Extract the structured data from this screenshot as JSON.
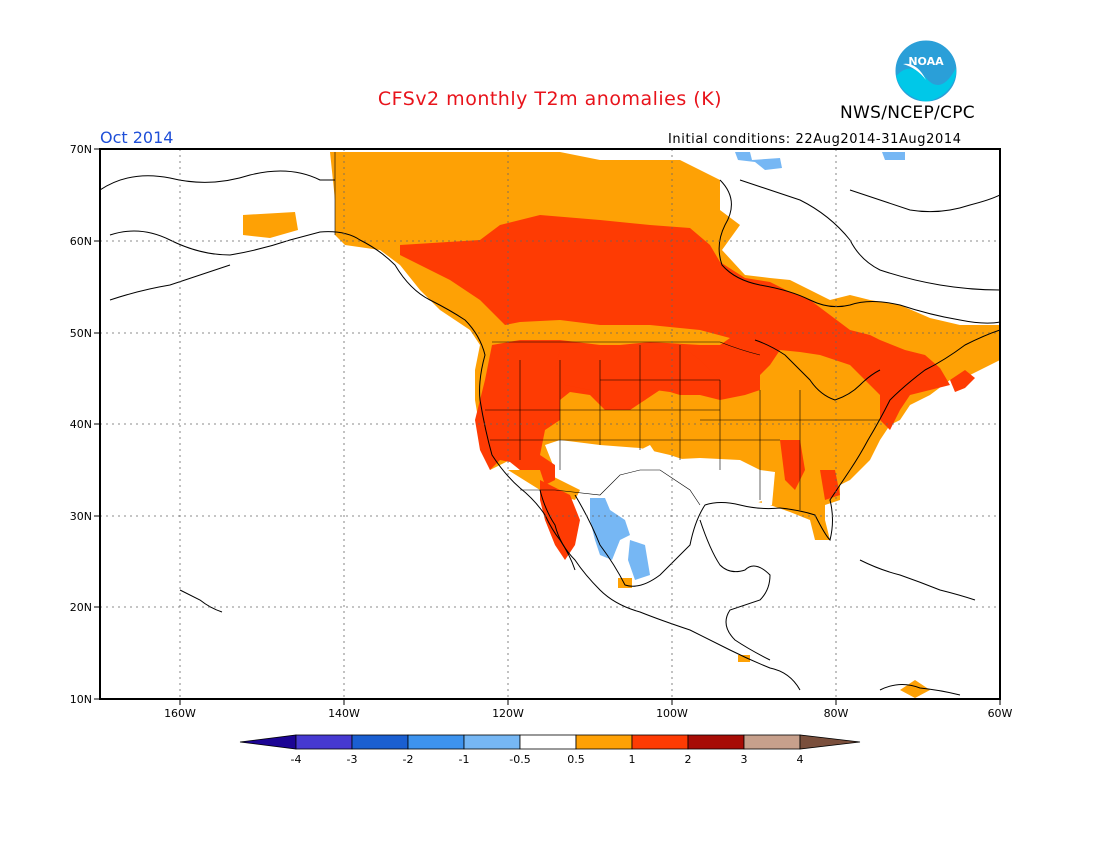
{
  "header": {
    "title": "CFSv2 monthly T2m anomalies (K)",
    "agency": "NWS/NCEP/CPC",
    "logo_text": "NOAA",
    "valid_month": "Oct 2014",
    "initial_conditions": "Initial conditions: 22Aug2014-31Aug2014"
  },
  "map": {
    "lat_labels": [
      "70N",
      "60N",
      "50N",
      "40N",
      "30N",
      "20N",
      "10N"
    ],
    "lon_labels": [
      "160W",
      "140W",
      "120W",
      "100W",
      "80W",
      "60W"
    ],
    "lat_range": [
      10,
      70
    ],
    "lon_range": [
      -171,
      -60
    ],
    "grid": true,
    "anomaly_regions": [
      {
        "region": "Canada interior",
        "category": "1 to 2",
        "color": "#fe3b03"
      },
      {
        "region": "Northern US Plains / Great Lakes",
        "category": "1 to 2",
        "color": "#fe3b03"
      },
      {
        "region": "Pacific Northwest / California",
        "category": "1 to 2",
        "color": "#fe3b03"
      },
      {
        "region": "Eastern US / Northern Canada / Alaska fringe",
        "category": "0.5 to 1",
        "color": "#fea105"
      },
      {
        "region": "New Mexico / West Texas",
        "category": "-0.5 to 0.5",
        "color": "#ffffff"
      },
      {
        "region": "Northern Mexico Sierra Madre",
        "category": "-1 to -0.5",
        "color": "#76b7f4"
      },
      {
        "region": "Baffin Island patches",
        "category": "-1 to -0.5",
        "color": "#76b7f4"
      }
    ]
  },
  "legend": {
    "unit": "K",
    "tick_labels": [
      "-4",
      "-3",
      "-2",
      "-1",
      "-0.5",
      "0.5",
      "1",
      "2",
      "3",
      "4"
    ],
    "bins": [
      {
        "range": "< -4",
        "color": "#1c0494"
      },
      {
        "range": "-4 to -3",
        "color": "#4639d1"
      },
      {
        "range": "-3 to -2",
        "color": "#1a5fd1"
      },
      {
        "range": "-2 to -1",
        "color": "#3d93ee"
      },
      {
        "range": "-1 to -0.5",
        "color": "#76b7f4"
      },
      {
        "range": "-0.5 to 0.5",
        "color": "#ffffff"
      },
      {
        "range": "0.5 to 1",
        "color": "#fea105"
      },
      {
        "range": "1 to 2",
        "color": "#fe3b03"
      },
      {
        "range": "2 to 3",
        "color": "#a70c06"
      },
      {
        "range": "3 to 4",
        "color": "#c7a08c"
      },
      {
        "range": "> 4",
        "color": "#7a4f3c"
      }
    ]
  }
}
